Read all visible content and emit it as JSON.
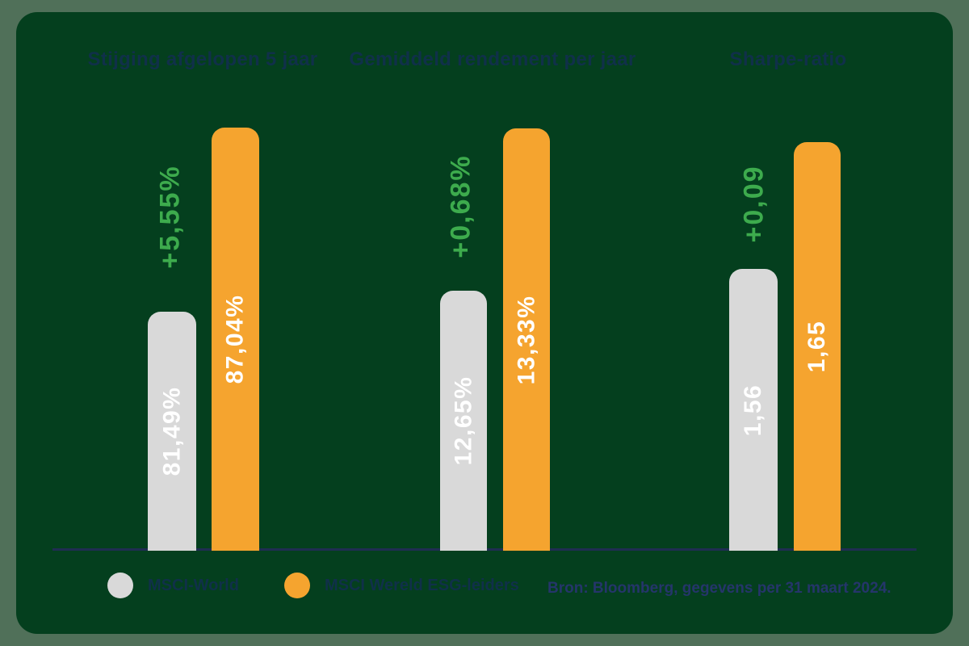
{
  "page": {
    "outer_background": "#507059",
    "card_background": "#043f1e"
  },
  "colors": {
    "bar_gray": "#d9d9d9",
    "bar_orange": "#f5a42f",
    "delta_green": "#3dab4d",
    "title_text": "#10304a",
    "axis_line": "#1f2d52",
    "source_text": "#25356b",
    "bar_value_text": "#ffffff"
  },
  "chart_data": {
    "type": "bar",
    "grid": false,
    "legend_position": "bottom",
    "groups": [
      {
        "title": "Stijging afgelopen 5 jaar",
        "delta": "+5,55%",
        "series": [
          {
            "name": "MSCI-World",
            "label": "81,49%",
            "value": 81.49
          },
          {
            "name": "MSCI Wereld ESG-leiders",
            "label": "87,04%",
            "value": 87.04
          }
        ]
      },
      {
        "title": "Gemiddeld rendement per jaar",
        "delta": "+0,68%",
        "series": [
          {
            "name": "MSCI-World",
            "label": "12,65%",
            "value": 12.65
          },
          {
            "name": "MSCI Wereld ESG-leiders",
            "label": "13,33%",
            "value": 13.33
          }
        ]
      },
      {
        "title": "Sharpe-ratio",
        "delta": "+0,09",
        "series": [
          {
            "name": "MSCI-World",
            "label": "1,56",
            "value": 1.56
          },
          {
            "name": "MSCI Wereld ESG-leiders",
            "label": "1,65",
            "value": 1.65
          }
        ]
      }
    ],
    "legend": [
      {
        "label": "MSCI-World",
        "color": "#d9d9d9"
      },
      {
        "label": "MSCI Wereld ESG-leiders",
        "color": "#f5a42f"
      }
    ],
    "source": "Bron: Bloomberg, gegevens per 31 maart 2024."
  }
}
